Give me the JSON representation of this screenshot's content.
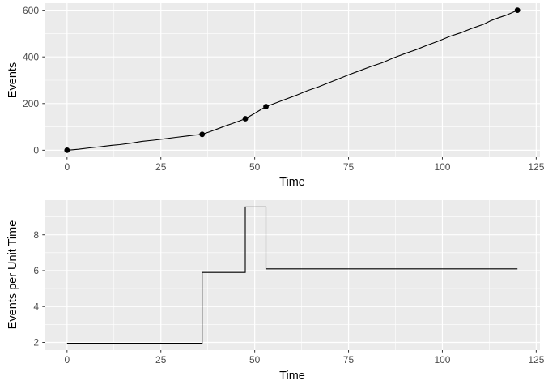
{
  "page": {
    "background": "#FFFFFF"
  },
  "style": {
    "panel_bg": "#EBEBEB",
    "grid_color": "#FFFFFF",
    "line_color": "#000000",
    "point_color": "#000000",
    "tick_label_color": "#4D4D4D",
    "tick_mark_color": "#333333",
    "axis_title_color": "#000000"
  },
  "chart_data": [
    {
      "type": "line",
      "name": "cumulative-events",
      "title": "",
      "xlabel": "Time",
      "ylabel": "Events",
      "legend": "none",
      "grid": true,
      "x_ticks": [
        0,
        25,
        50,
        75,
        100,
        125
      ],
      "y_ticks": [
        0,
        200,
        400,
        600
      ],
      "x_minor": [
        12.5,
        37.5,
        62.5,
        87.5,
        112.5
      ],
      "y_minor": [
        100,
        300,
        500
      ],
      "xlim": [
        -6,
        126
      ],
      "ylim": [
        -30,
        630
      ],
      "marked_points": [
        [
          0,
          0
        ],
        [
          36,
          68
        ],
        [
          47.5,
          135
        ],
        [
          53,
          187
        ],
        [
          120,
          600
        ]
      ],
      "line_points": [
        [
          0,
          0
        ],
        [
          3,
          4
        ],
        [
          6,
          10
        ],
        [
          9,
          15
        ],
        [
          12,
          21
        ],
        [
          14,
          24
        ],
        [
          17,
          30
        ],
        [
          20,
          38
        ],
        [
          23,
          43
        ],
        [
          26,
          49
        ],
        [
          29,
          55
        ],
        [
          32,
          61
        ],
        [
          34,
          65
        ],
        [
          36,
          68
        ],
        [
          38,
          79
        ],
        [
          40,
          91
        ],
        [
          42,
          103
        ],
        [
          44,
          114
        ],
        [
          46,
          126
        ],
        [
          47.5,
          135
        ],
        [
          48.5,
          144
        ],
        [
          50,
          158
        ],
        [
          51.5,
          173
        ],
        [
          53,
          187
        ],
        [
          55,
          199
        ],
        [
          58,
          217
        ],
        [
          61,
          235
        ],
        [
          64,
          255
        ],
        [
          67,
          272
        ],
        [
          70,
          291
        ],
        [
          73,
          310
        ],
        [
          75,
          323
        ],
        [
          78,
          341
        ],
        [
          81,
          359
        ],
        [
          84,
          375
        ],
        [
          87,
          396
        ],
        [
          90,
          414
        ],
        [
          93,
          431
        ],
        [
          96,
          450
        ],
        [
          99,
          468
        ],
        [
          102,
          488
        ],
        [
          105,
          504
        ],
        [
          108,
          523
        ],
        [
          111,
          540
        ],
        [
          113,
          556
        ],
        [
          115,
          568
        ],
        [
          117,
          579
        ],
        [
          118.5,
          589
        ],
        [
          120,
          600
        ]
      ]
    },
    {
      "type": "step",
      "name": "event-rate",
      "title": "",
      "xlabel": "Time",
      "ylabel": "Events per Unit Time",
      "legend": "none",
      "grid": true,
      "x_ticks": [
        0,
        25,
        50,
        75,
        100,
        125
      ],
      "y_ticks": [
        2,
        4,
        6,
        8
      ],
      "x_minor": [
        12.5,
        37.5,
        62.5,
        87.5,
        112.5
      ],
      "y_minor": [
        3,
        5,
        7,
        9
      ],
      "xlim": [
        -6,
        126
      ],
      "ylim": [
        1.57,
        9.93
      ],
      "segments": [
        {
          "t_start": 0,
          "t_end": 36,
          "rate": 1.95
        },
        {
          "t_start": 36,
          "t_end": 47.5,
          "rate": 5.9
        },
        {
          "t_start": 47.5,
          "t_end": 53,
          "rate": 9.55
        },
        {
          "t_start": 53,
          "t_end": 120,
          "rate": 6.1
        }
      ]
    }
  ]
}
